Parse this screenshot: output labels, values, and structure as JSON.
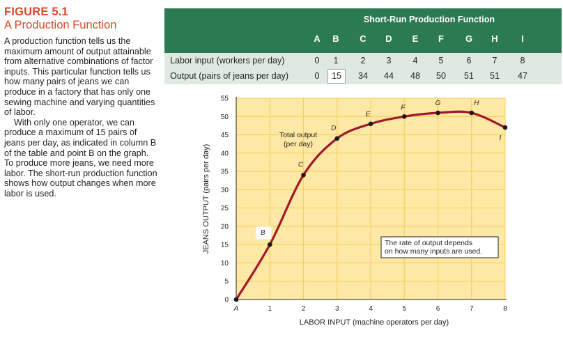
{
  "figure": {
    "label": "FIGURE 5.1",
    "title": "A Production Function",
    "paragraph1": "A production function tells us the maximum amount of output attainable from alternative combinations of factor inputs. This particular function tells us how many pairs of jeans we can produce in a factory that has only one sewing machine and varying quantities of labor.",
    "paragraph2": "With only one operator, we can produce a maximum of 15 pairs of jeans per day, as indicated in column B of the table and point B on the graph. To produce more jeans, we need more labor. The short-run production function shows how output changes when more labor is used."
  },
  "table": {
    "title": "Short-Run Production Function",
    "columns": [
      "A",
      "B",
      "C",
      "D",
      "E",
      "F",
      "G",
      "H",
      "I"
    ],
    "rows": [
      {
        "label": "Labor input (workers per day)",
        "values": [
          "0",
          "1",
          "2",
          "3",
          "4",
          "5",
          "6",
          "7",
          "8"
        ]
      },
      {
        "label": "Output (pairs of jeans per day)",
        "values": [
          "0",
          "15",
          "34",
          "44",
          "48",
          "50",
          "51",
          "51",
          "47"
        ]
      }
    ],
    "highlight_column": "B"
  },
  "chart_data": {
    "type": "line",
    "title": "",
    "xlabel": "LABOR INPUT (machine operators per day)",
    "ylabel": "JEANS OUTPUT (pairs per day)",
    "xlim": [
      0,
      8
    ],
    "ylim": [
      0,
      55
    ],
    "x_ticks": [
      "A",
      "1",
      "2",
      "3",
      "4",
      "5",
      "6",
      "7",
      "8"
    ],
    "y_ticks": [
      "0",
      "5",
      "10",
      "15",
      "20",
      "25",
      "30",
      "35",
      "40",
      "45",
      "50",
      "55"
    ],
    "grid": true,
    "series": [
      {
        "name": "",
        "points": [
          {
            "label": "A",
            "x": 0,
            "y": 0
          },
          {
            "label": "B",
            "x": 1,
            "y": 15
          },
          {
            "label": "C",
            "x": 2,
            "y": 34
          },
          {
            "label": "D",
            "x": 3,
            "y": 44
          },
          {
            "label": "E",
            "x": 4,
            "y": 48
          },
          {
            "label": "F",
            "x": 5,
            "y": 50
          },
          {
            "label": "G",
            "x": 6,
            "y": 51
          },
          {
            "label": "H",
            "x": 7,
            "y": 51
          },
          {
            "label": "I",
            "x": 8,
            "y": 47
          }
        ]
      }
    ],
    "curve_label": "Total output\n(per day)",
    "annotation": "The rate of output depends\non how many inputs are used.",
    "colors": {
      "curve": "#a3172b",
      "plot_bg": "#fde9a5",
      "grid": "#f7cf57",
      "header": "#2b7a52",
      "row_bg": "#dfe9e2",
      "accent": "#d9472b"
    }
  }
}
